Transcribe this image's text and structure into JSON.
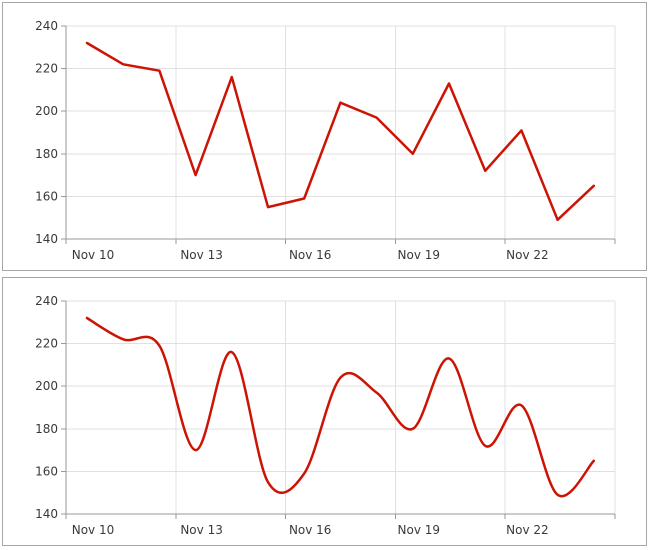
{
  "chart_data": [
    {
      "type": "line",
      "line_style": "straight",
      "title": "",
      "xlabel": "",
      "ylabel": "",
      "x": [
        "Nov 10",
        "Nov 11",
        "Nov 12",
        "Nov 13",
        "Nov 14",
        "Nov 15",
        "Nov 16",
        "Nov 17",
        "Nov 18",
        "Nov 19",
        "Nov 20",
        "Nov 21",
        "Nov 22",
        "Nov 23",
        "Nov 24"
      ],
      "values": [
        232,
        222,
        219,
        170,
        216,
        155,
        159,
        204,
        197,
        180,
        213,
        172,
        191,
        149,
        165
      ],
      "xtick_labels": [
        "Nov 10",
        "Nov 13",
        "Nov 16",
        "Nov 19",
        "Nov 22"
      ],
      "ytick_labels": [
        "240",
        "220",
        "200",
        "180",
        "160",
        "140"
      ],
      "ylim": [
        140,
        240
      ],
      "ytick_step": 20,
      "grid": true,
      "legend": "none"
    },
    {
      "type": "line",
      "line_style": "smoothed",
      "title": "",
      "xlabel": "",
      "ylabel": "",
      "x": [
        "Nov 10",
        "Nov 11",
        "Nov 12",
        "Nov 13",
        "Nov 14",
        "Nov 15",
        "Nov 16",
        "Nov 17",
        "Nov 18",
        "Nov 19",
        "Nov 20",
        "Nov 21",
        "Nov 22",
        "Nov 23",
        "Nov 24"
      ],
      "values": [
        232,
        222,
        219,
        170,
        216,
        155,
        159,
        204,
        197,
        180,
        213,
        172,
        191,
        149,
        165
      ],
      "xtick_labels": [
        "Nov 10",
        "Nov 13",
        "Nov 16",
        "Nov 19",
        "Nov 22"
      ],
      "ytick_labels": [
        "240",
        "220",
        "200",
        "180",
        "160",
        "140"
      ],
      "ylim": [
        140,
        240
      ],
      "ytick_step": 20,
      "grid": true,
      "legend": "none"
    }
  ],
  "colors": {
    "line": "#cc1404",
    "grid": "#e0e0e0",
    "axis": "#999999",
    "label": "#3a3a3a",
    "panel_border": "#a6a6a6",
    "background": "#ffffff"
  }
}
